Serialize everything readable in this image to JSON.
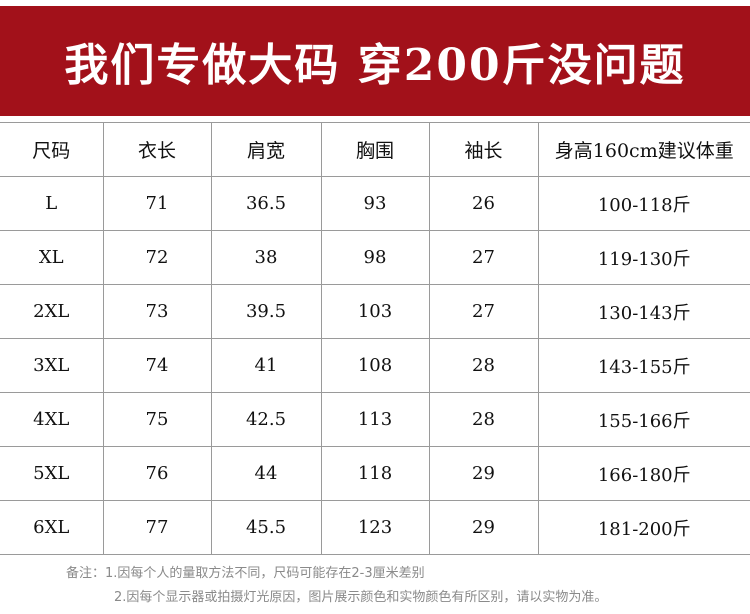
{
  "banner": {
    "title": "我们专做大码 穿200斤没问题",
    "bg_color": "#a2111a"
  },
  "table": {
    "headers": [
      "尺码",
      "衣长",
      "肩宽",
      "胸围",
      "袖长",
      "身高160cm建议体重"
    ],
    "rows": [
      [
        "L",
        "71",
        "36.5",
        "93",
        "26",
        "100-118斤"
      ],
      [
        "XL",
        "72",
        "38",
        "98",
        "27",
        "119-130斤"
      ],
      [
        "2XL",
        "73",
        "39.5",
        "103",
        "27",
        "130-143斤"
      ],
      [
        "3XL",
        "74",
        "41",
        "108",
        "28",
        "143-155斤"
      ],
      [
        "4XL",
        "75",
        "42.5",
        "113",
        "28",
        "155-166斤"
      ],
      [
        "5XL",
        "76",
        "44",
        "118",
        "29",
        "166-180斤"
      ],
      [
        "6XL",
        "77",
        "45.5",
        "123",
        "29",
        "181-200斤"
      ]
    ]
  },
  "notes": {
    "line1": "备注：1.因每个人的量取方法不同，尺码可能存在2-3厘米差别",
    "line2": "2.因每个显示器或拍摄灯光原因，图片展示颜色和实物颜色有所区别，请以实物为准。"
  }
}
